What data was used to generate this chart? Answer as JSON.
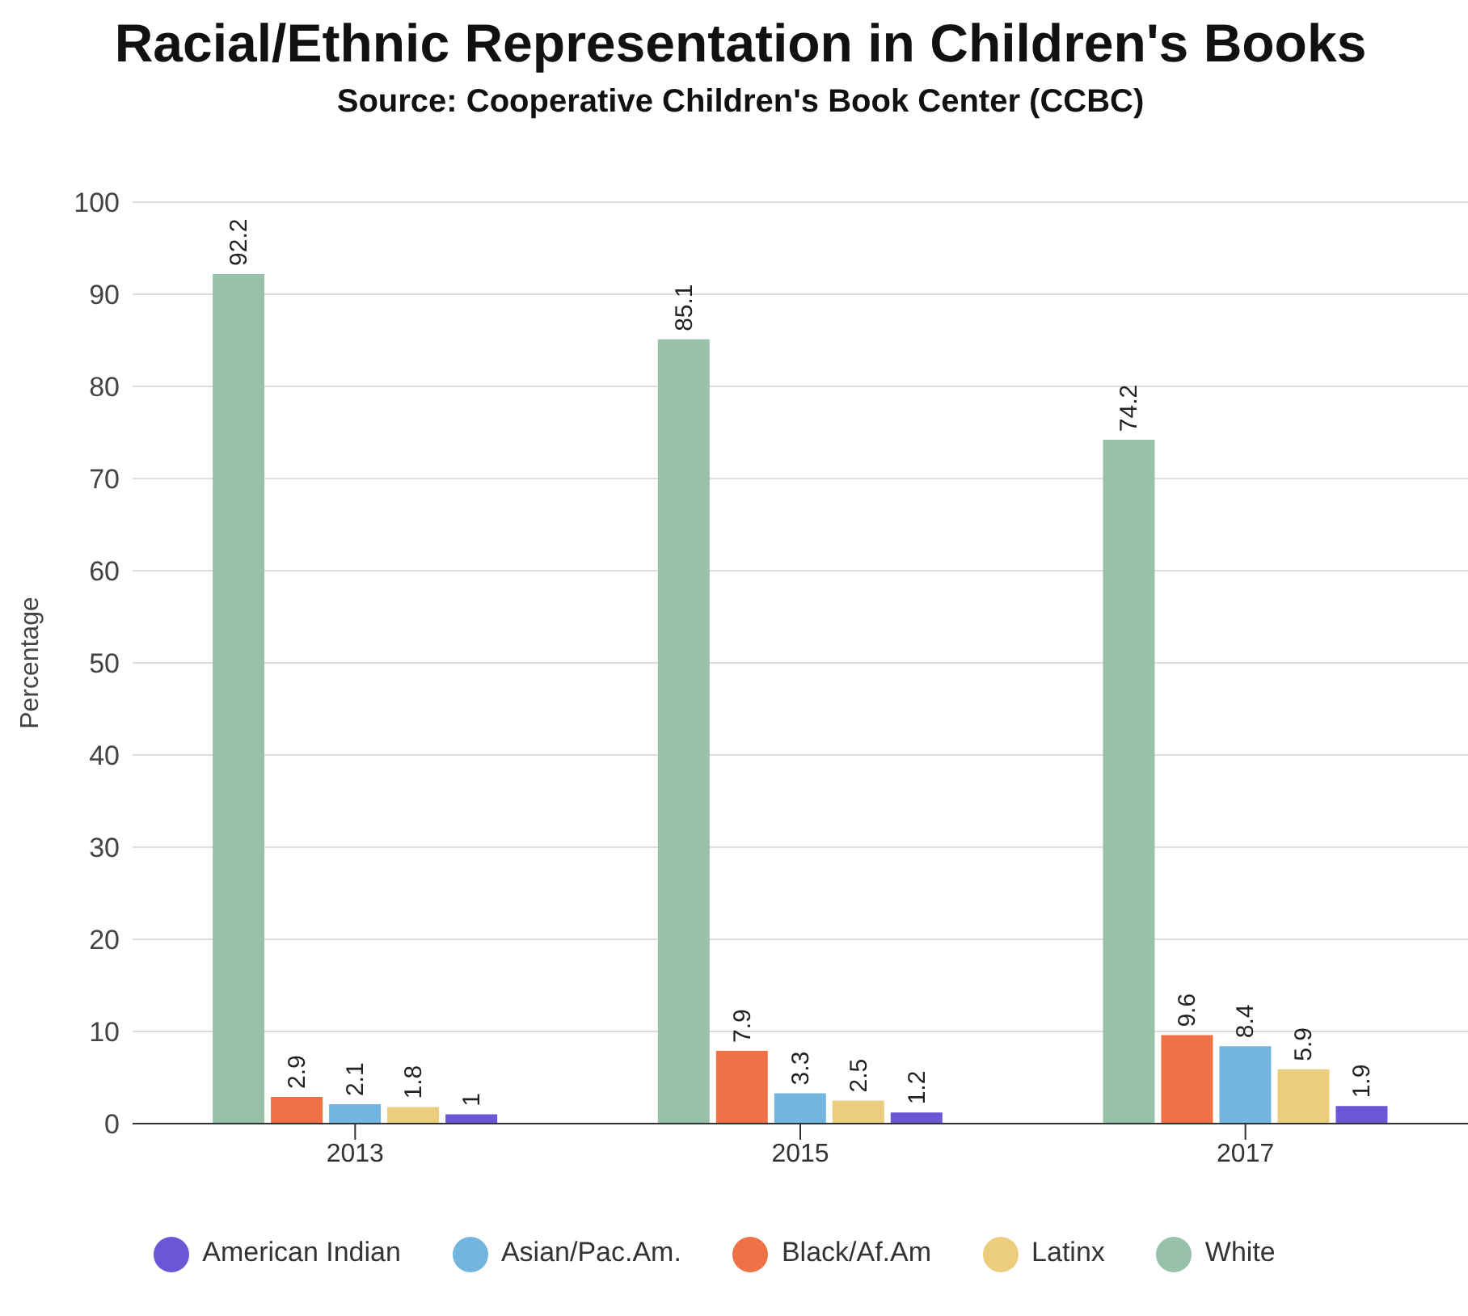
{
  "chart_data": {
    "type": "bar",
    "title": "Racial/Ethnic Representation in Children's Books",
    "subtitle": "Source: Cooperative Children's Book Center (CCBC)",
    "ylabel": "Percentage",
    "categories": [
      "2013",
      "2015",
      "2017"
    ],
    "series": [
      {
        "name": "White",
        "color": "#97c1a9",
        "values": [
          92.2,
          85.1,
          74.2
        ]
      },
      {
        "name": "Black/Af.Am",
        "color": "#ee7245",
        "values": [
          2.9,
          7.9,
          9.6
        ]
      },
      {
        "name": "Asian/Pac.Am.",
        "color": "#74b5e0",
        "values": [
          2.1,
          3.3,
          8.4
        ]
      },
      {
        "name": "Latinx",
        "color": "#ebcd7d",
        "values": [
          1.8,
          2.5,
          5.9
        ]
      },
      {
        "name": "American Indian",
        "color": "#6b57d6",
        "values": [
          1,
          1.2,
          1.9
        ]
      }
    ],
    "ylim": [
      0,
      100
    ],
    "yticks": [
      0,
      10,
      20,
      30,
      40,
      50,
      60,
      70,
      80,
      90,
      100
    ],
    "grid": "y",
    "legend": "bottom",
    "data_labels": true
  }
}
